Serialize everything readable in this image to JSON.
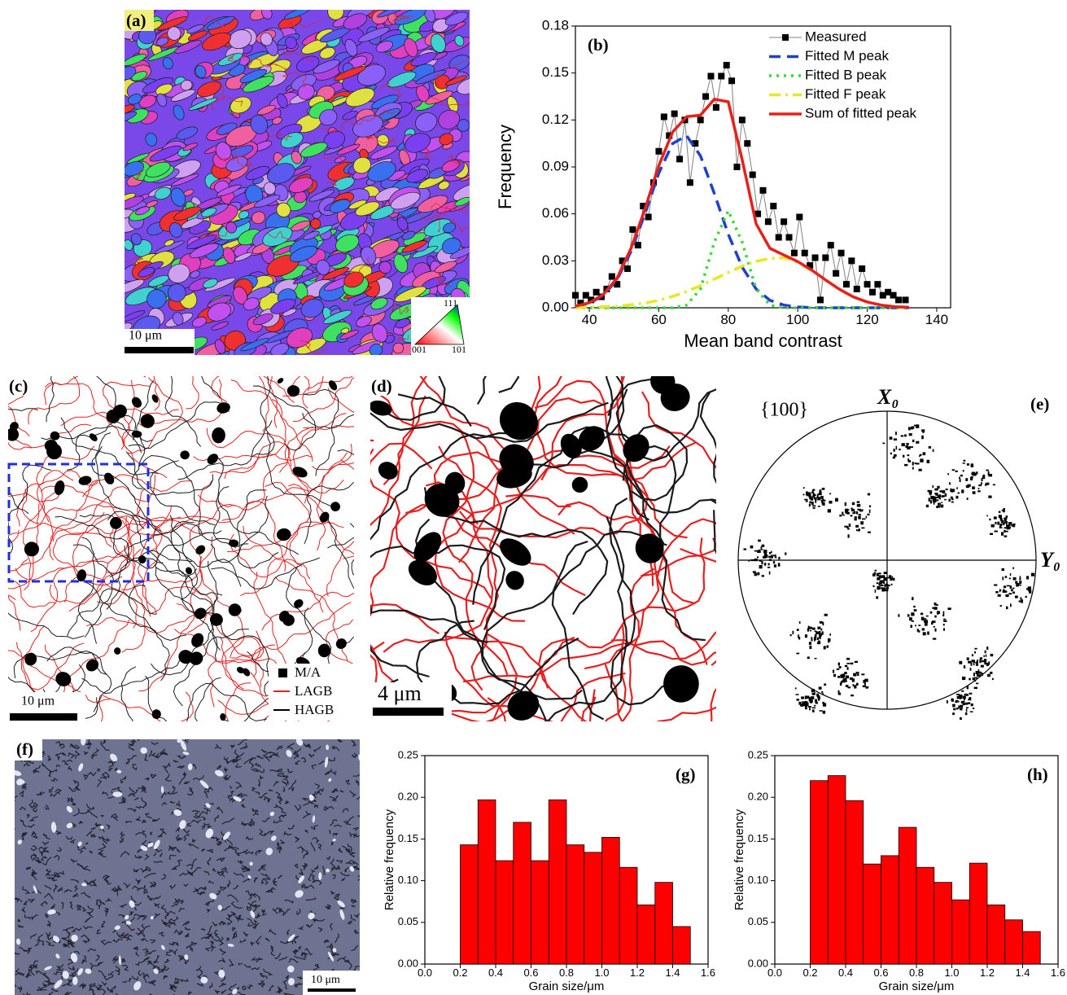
{
  "chart_data": [
    {
      "type": "line",
      "annotation": "(b)",
      "x_label": "Mean band contrast",
      "y_label": "Frequency",
      "xlim": [
        36,
        144
      ],
      "xticks": [
        40,
        60,
        80,
        100,
        120,
        140
      ],
      "ylim": [
        0,
        0.18
      ],
      "yticks": [
        {
          "value": 0,
          "label": "0.00"
        },
        0.03,
        0.06,
        0.09,
        0.12,
        0.15,
        0.18
      ],
      "legend": "upper right",
      "series": [
        {
          "name": "Measured",
          "color": "#000000",
          "line_color": "#808080",
          "style": "solid",
          "marker": "square",
          "x": [
            36,
            37.5,
            39,
            40.5,
            42,
            43.5,
            45,
            46.5,
            48,
            49.5,
            51,
            52.5,
            54,
            55.5,
            57,
            58.5,
            60,
            61.5,
            63,
            64.5,
            66,
            67.5,
            69,
            70.5,
            72,
            73.5,
            75,
            76.5,
            78,
            79.5,
            81,
            82.5,
            84,
            85.5,
            87,
            88.5,
            90,
            91.5,
            93,
            94.5,
            96,
            97.5,
            99,
            100.5,
            102,
            103.5,
            105,
            106.5,
            108,
            109.5,
            111,
            112.5,
            114,
            115.5,
            117,
            118.5,
            120,
            121.5,
            123,
            124.5,
            126,
            127.5,
            129,
            131
          ],
          "values": [
            0.008,
            0.003,
            0.008,
            0.005,
            0.01,
            0.007,
            0.012,
            0.02,
            0.015,
            0.03,
            0.025,
            0.05,
            0.04,
            0.065,
            0.058,
            0.08,
            0.1,
            0.122,
            0.11,
            0.124,
            0.095,
            0.12,
            0.08,
            0.105,
            0.12,
            0.135,
            0.148,
            0.128,
            0.148,
            0.155,
            0.145,
            0.09,
            0.12,
            0.105,
            0.085,
            0.06,
            0.075,
            0.055,
            0.065,
            0.045,
            0.055,
            0.045,
            0.035,
            0.058,
            0.035,
            0.027,
            0.032,
            0.005,
            0.032,
            0.04,
            0.022,
            0.035,
            0.015,
            0.03,
            0.012,
            0.025,
            0.015,
            0.01,
            0.015,
            0.008,
            0.01,
            0.008,
            0.005,
            0.005
          ]
        },
        {
          "name": "Fitted M peak",
          "color": "#1f3fd1",
          "style": "dashed",
          "x": [
            36,
            40,
            44,
            48,
            52,
            56,
            60,
            64,
            68,
            72,
            76,
            80,
            84,
            88,
            92,
            96,
            100,
            104,
            108,
            112,
            116,
            120,
            124,
            128,
            132
          ],
          "values": [
            0.0009,
            0.0029,
            0.0078,
            0.018,
            0.036,
            0.06,
            0.086,
            0.105,
            0.11,
            0.097,
            0.073,
            0.047,
            0.026,
            0.012,
            0.0048,
            0.0017,
            0.0005,
            0.0001,
            0,
            0,
            0,
            0,
            0,
            0,
            0
          ]
        },
        {
          "name": "Fitted B peak",
          "color": "#33dd33",
          "style": "dotted",
          "x": [
            36,
            40,
            44,
            48,
            52,
            56,
            60,
            64,
            68,
            72,
            76,
            80,
            84,
            88,
            92,
            96,
            100,
            104,
            108,
            112,
            116,
            120,
            124,
            128,
            132
          ],
          "values": [
            0,
            0,
            0,
            0,
            0,
            0,
            0,
            0,
            0.0017,
            0.012,
            0.042,
            0.062,
            0.042,
            0.012,
            0.0017,
            0,
            0,
            0,
            0,
            0,
            0,
            0,
            0,
            0,
            0
          ]
        },
        {
          "name": "Fitted F peak",
          "color": "#e8e820",
          "style": "dashdot",
          "x": [
            36,
            40,
            44,
            48,
            52,
            56,
            60,
            64,
            68,
            72,
            76,
            80,
            84,
            88,
            92,
            96,
            100,
            104,
            108,
            112,
            116,
            120,
            124,
            128,
            132
          ],
          "values": [
            0.0001,
            0.0003,
            0.0006,
            0.001,
            0.0019,
            0.003,
            0.0048,
            0.0073,
            0.0104,
            0.0141,
            0.0183,
            0.0226,
            0.0266,
            0.0297,
            0.0315,
            0.032,
            0.029,
            0.024,
            0.0178,
            0.0118,
            0.0069,
            0.0037,
            0.0017,
            0.0007,
            0.0003
          ]
        },
        {
          "name": "Sum of fitted peak",
          "color": "#e8201a",
          "style": "solid",
          "x": [
            36,
            40,
            44,
            48,
            52,
            56,
            60,
            64,
            68,
            72,
            76,
            80,
            84,
            88,
            92,
            96,
            100,
            104,
            108,
            112,
            116,
            120,
            124,
            128,
            132
          ],
          "values": [
            0.001,
            0.0032,
            0.0084,
            0.019,
            0.0379,
            0.063,
            0.0908,
            0.1123,
            0.1221,
            0.1231,
            0.1333,
            0.1316,
            0.0946,
            0.0537,
            0.038,
            0.0337,
            0.0295,
            0.0241,
            0.0178,
            0.0118,
            0.0069,
            0.0037,
            0.0017,
            0.0007,
            0.0003
          ]
        }
      ]
    },
    {
      "type": "histogram",
      "annotation": "(g)",
      "x_label": "Grain size/μm",
      "y_label": "Relative frequency",
      "xlim": [
        0,
        1.6
      ],
      "xticks": [
        {
          "value": 0,
          "label": "0.0"
        },
        0.2,
        0.4,
        0.6,
        0.8,
        {
          "value": 1,
          "label": "1.0"
        },
        1.2,
        1.4,
        1.6
      ],
      "ylim": [
        0,
        0.25
      ],
      "yticks": [
        {
          "value": 0,
          "label": "0.00"
        },
        0.05,
        {
          "value": 0.1,
          "label": "0.10"
        },
        0.15,
        {
          "value": 0.2,
          "label": "0.20"
        },
        0.25
      ],
      "bins": [
        0.2,
        0.3,
        0.4,
        0.5,
        0.6,
        0.7,
        0.8,
        0.9,
        1.0,
        1.1,
        1.2,
        1.3,
        1.4,
        1.5
      ],
      "values": [
        0.143,
        0.197,
        0.124,
        0.17,
        0.124,
        0.197,
        0.143,
        0.134,
        0.152,
        0.116,
        0.071,
        0.098,
        0.045
      ],
      "color": "#ff0000"
    },
    {
      "type": "histogram",
      "annotation": "(h)",
      "x_label": "Grain size/μm",
      "y_label": "Relative frequency",
      "xlim": [
        0,
        1.6
      ],
      "xticks": [
        {
          "value": 0,
          "label": "0.0"
        },
        0.2,
        0.4,
        0.6,
        0.8,
        {
          "value": 1,
          "label": "1.0"
        },
        1.2,
        1.4,
        1.6
      ],
      "ylim": [
        0,
        0.25
      ],
      "yticks": [
        {
          "value": 0,
          "label": "0.00"
        },
        0.05,
        {
          "value": 0.1,
          "label": "0.10"
        },
        0.15,
        {
          "value": 0.2,
          "label": "0.20"
        },
        0.25
      ],
      "bins": [
        0.2,
        0.3,
        0.4,
        0.5,
        0.6,
        0.7,
        0.8,
        0.9,
        1.0,
        1.1,
        1.2,
        1.3,
        1.4,
        1.5
      ],
      "values": [
        0.22,
        0.226,
        0.196,
        0.12,
        0.13,
        0.164,
        0.116,
        0.098,
        0.077,
        0.121,
        0.071,
        0.053,
        0.039
      ],
      "color": "#ff0000"
    }
  ],
  "panels": {
    "a": {
      "label": "(a)",
      "scale_bar": "10 μm",
      "ipf_key": [
        "111",
        "001",
        "101"
      ]
    },
    "c": {
      "label": "(c)",
      "scale_bar": "10 μm",
      "legend": [
        "M/A",
        "LAGB",
        "HAGB"
      ]
    },
    "d": {
      "label": "(d)",
      "scale_bar": "4 μm"
    },
    "e": {
      "label": "(e)",
      "plane": "{100}",
      "x_axis": "X₀",
      "y_axis": "Y₀"
    },
    "f": {
      "label": "(f)",
      "scale_bar": "10 μm"
    }
  }
}
